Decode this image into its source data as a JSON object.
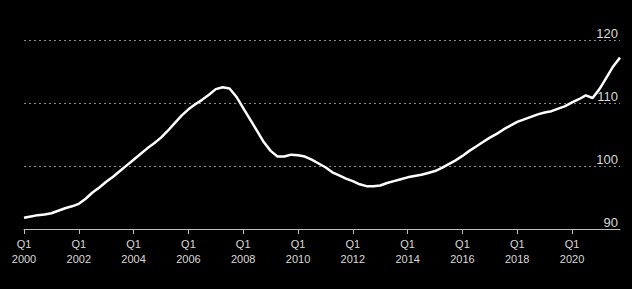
{
  "chart_data": {
    "type": "line",
    "categories": [
      "Q1\n2000",
      null,
      null,
      null,
      null,
      null,
      null,
      null,
      "Q1\n2002",
      null,
      null,
      null,
      null,
      null,
      null,
      null,
      "Q1\n2004",
      null,
      null,
      null,
      null,
      null,
      null,
      null,
      "Q1\n2006",
      null,
      null,
      null,
      null,
      null,
      null,
      null,
      "Q1\n2008",
      null,
      null,
      null,
      null,
      null,
      null,
      null,
      "Q1\n2010",
      null,
      null,
      null,
      null,
      null,
      null,
      null,
      "Q1\n2012",
      null,
      null,
      null,
      null,
      null,
      null,
      null,
      "Q1\n2014",
      null,
      null,
      null,
      null,
      null,
      null,
      null,
      "Q1\n2016",
      null,
      null,
      null,
      null,
      null,
      null,
      null,
      "Q1\n2018",
      null,
      null,
      null,
      null,
      null,
      null,
      null,
      "Q1\n2020",
      null,
      null,
      null,
      null,
      null,
      null,
      null
    ],
    "values": [
      91.8,
      92.0,
      92.2,
      92.3,
      92.5,
      92.9,
      93.3,
      93.6,
      94.0,
      94.8,
      95.8,
      96.6,
      97.5,
      98.3,
      99.2,
      100.1,
      101.0,
      101.9,
      102.8,
      103.6,
      104.5,
      105.6,
      106.8,
      108.0,
      109.0,
      109.8,
      110.5,
      111.3,
      112.2,
      112.5,
      112.3,
      111.0,
      109.2,
      107.4,
      105.6,
      103.8,
      102.4,
      101.5,
      101.5,
      101.8,
      101.7,
      101.5,
      101.0,
      100.4,
      99.8,
      99.0,
      98.5,
      98.0,
      97.6,
      97.1,
      96.8,
      96.8,
      96.9,
      97.3,
      97.6,
      97.9,
      98.2,
      98.4,
      98.6,
      98.9,
      99.2,
      99.7,
      100.3,
      100.9,
      101.6,
      102.4,
      103.1,
      103.8,
      104.5,
      105.1,
      105.8,
      106.4,
      107.0,
      107.4,
      107.8,
      108.2,
      108.5,
      108.7,
      109.1,
      109.5,
      110.1,
      110.6,
      111.2,
      110.8,
      112.2,
      114.0,
      115.8,
      117.2
    ],
    "color": "#ffffff",
    "ylim": [
      90,
      120
    ],
    "yticks": [
      90,
      100,
      110,
      120
    ],
    "grid": true
  }
}
